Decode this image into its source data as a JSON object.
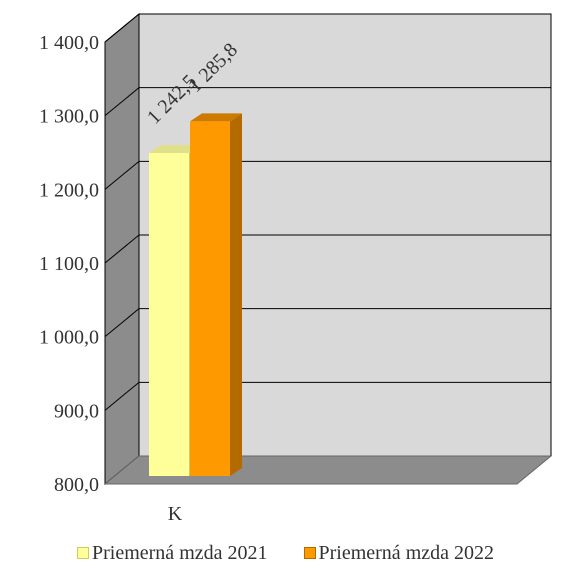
{
  "chart_data": {
    "type": "bar",
    "categories": [
      "K"
    ],
    "series": [
      {
        "name": "Priemerná mzda 2021",
        "values": [
          1242.5
        ],
        "data_labels": [
          "1 242,5"
        ],
        "color": "#ffff99",
        "side_color": "#cccc66",
        "top_color": "#e0e08a"
      },
      {
        "name": "Priemerná mzda 2022",
        "values": [
          1285.8
        ],
        "data_labels": [
          "1 285,8"
        ],
        "color": "#ff9900",
        "side_color": "#b36b00",
        "top_color": "#cc7a00"
      }
    ],
    "y_ticks": [
      {
        "value": 800,
        "label": "800,0"
      },
      {
        "value": 900,
        "label": "900,0"
      },
      {
        "value": 1000,
        "label": "1 000,0"
      },
      {
        "value": 1100,
        "label": "1 100,0"
      },
      {
        "value": 1200,
        "label": "1 200,0"
      },
      {
        "value": 1300,
        "label": "1 300,0"
      },
      {
        "value": 1400,
        "label": "1 400,0"
      }
    ],
    "ylim": [
      800,
      1400
    ],
    "grid": true,
    "legend_position": "bottom",
    "wall_color": "#d9d9d9",
    "side_wall_color": "#8c8c8c",
    "floor_color": "#8c8c8c"
  }
}
